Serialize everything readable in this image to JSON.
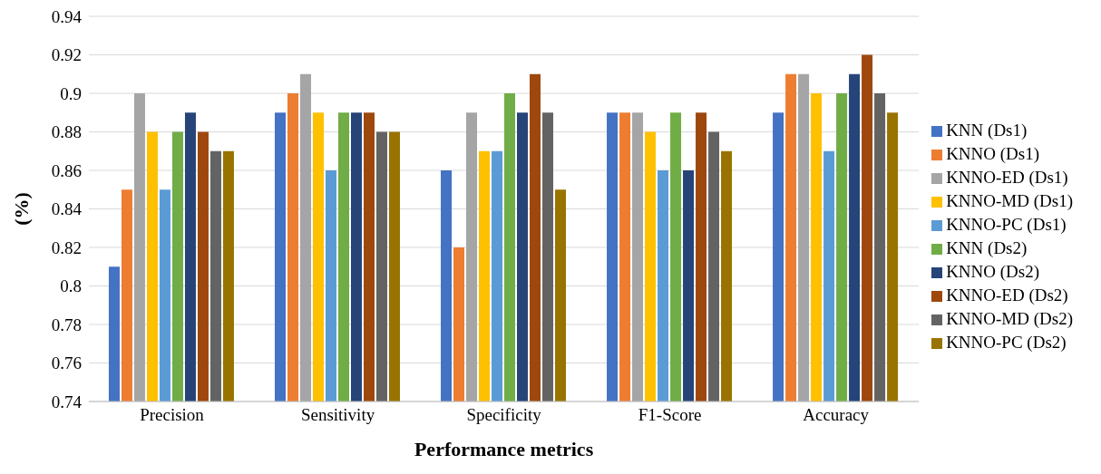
{
  "chart_data": {
    "type": "bar",
    "xlabel": "Performance metrics",
    "ylabel": "(%)",
    "categories": [
      "Precision",
      "Sensitivity",
      "Specificity",
      "F1-Score",
      "Accuracy"
    ],
    "series": [
      {
        "name": "KNN (Ds1)",
        "color": "#4472c4",
        "values": [
          0.81,
          0.89,
          0.86,
          0.89,
          0.89
        ]
      },
      {
        "name": "KNNO (Ds1)",
        "color": "#ed7d31",
        "values": [
          0.85,
          0.9,
          0.82,
          0.89,
          0.91
        ]
      },
      {
        "name": "KNNO-ED (Ds1)",
        "color": "#a5a5a5",
        "values": [
          0.9,
          0.91,
          0.89,
          0.89,
          0.91
        ]
      },
      {
        "name": "KNNO-MD (Ds1)",
        "color": "#ffc000",
        "values": [
          0.88,
          0.89,
          0.87,
          0.88,
          0.9
        ]
      },
      {
        "name": "KNNO-PC (Ds1)",
        "color": "#5b9bd5",
        "values": [
          0.85,
          0.86,
          0.87,
          0.86,
          0.87
        ]
      },
      {
        "name": "KNN (Ds2)",
        "color": "#70ad47",
        "values": [
          0.88,
          0.89,
          0.9,
          0.89,
          0.9
        ]
      },
      {
        "name": "KNNO (Ds2)",
        "color": "#264478",
        "values": [
          0.89,
          0.89,
          0.89,
          0.86,
          0.91
        ]
      },
      {
        "name": "KNNO-ED (Ds2)",
        "color": "#9e480e",
        "values": [
          0.88,
          0.89,
          0.91,
          0.89,
          0.92
        ]
      },
      {
        "name": "KNNO-MD (Ds2)",
        "color": "#636363",
        "values": [
          0.87,
          0.88,
          0.89,
          0.88,
          0.9
        ]
      },
      {
        "name": "KNNO-PC (Ds2)",
        "color": "#997300",
        "values": [
          0.87,
          0.88,
          0.85,
          0.87,
          0.89
        ]
      }
    ],
    "ylim": [
      0.74,
      0.94
    ],
    "yticks": [
      0.74,
      0.76,
      0.78,
      0.8,
      0.82,
      0.84,
      0.86,
      0.88,
      0.9,
      0.92,
      0.94
    ],
    "grid": "y",
    "legend": "right"
  }
}
